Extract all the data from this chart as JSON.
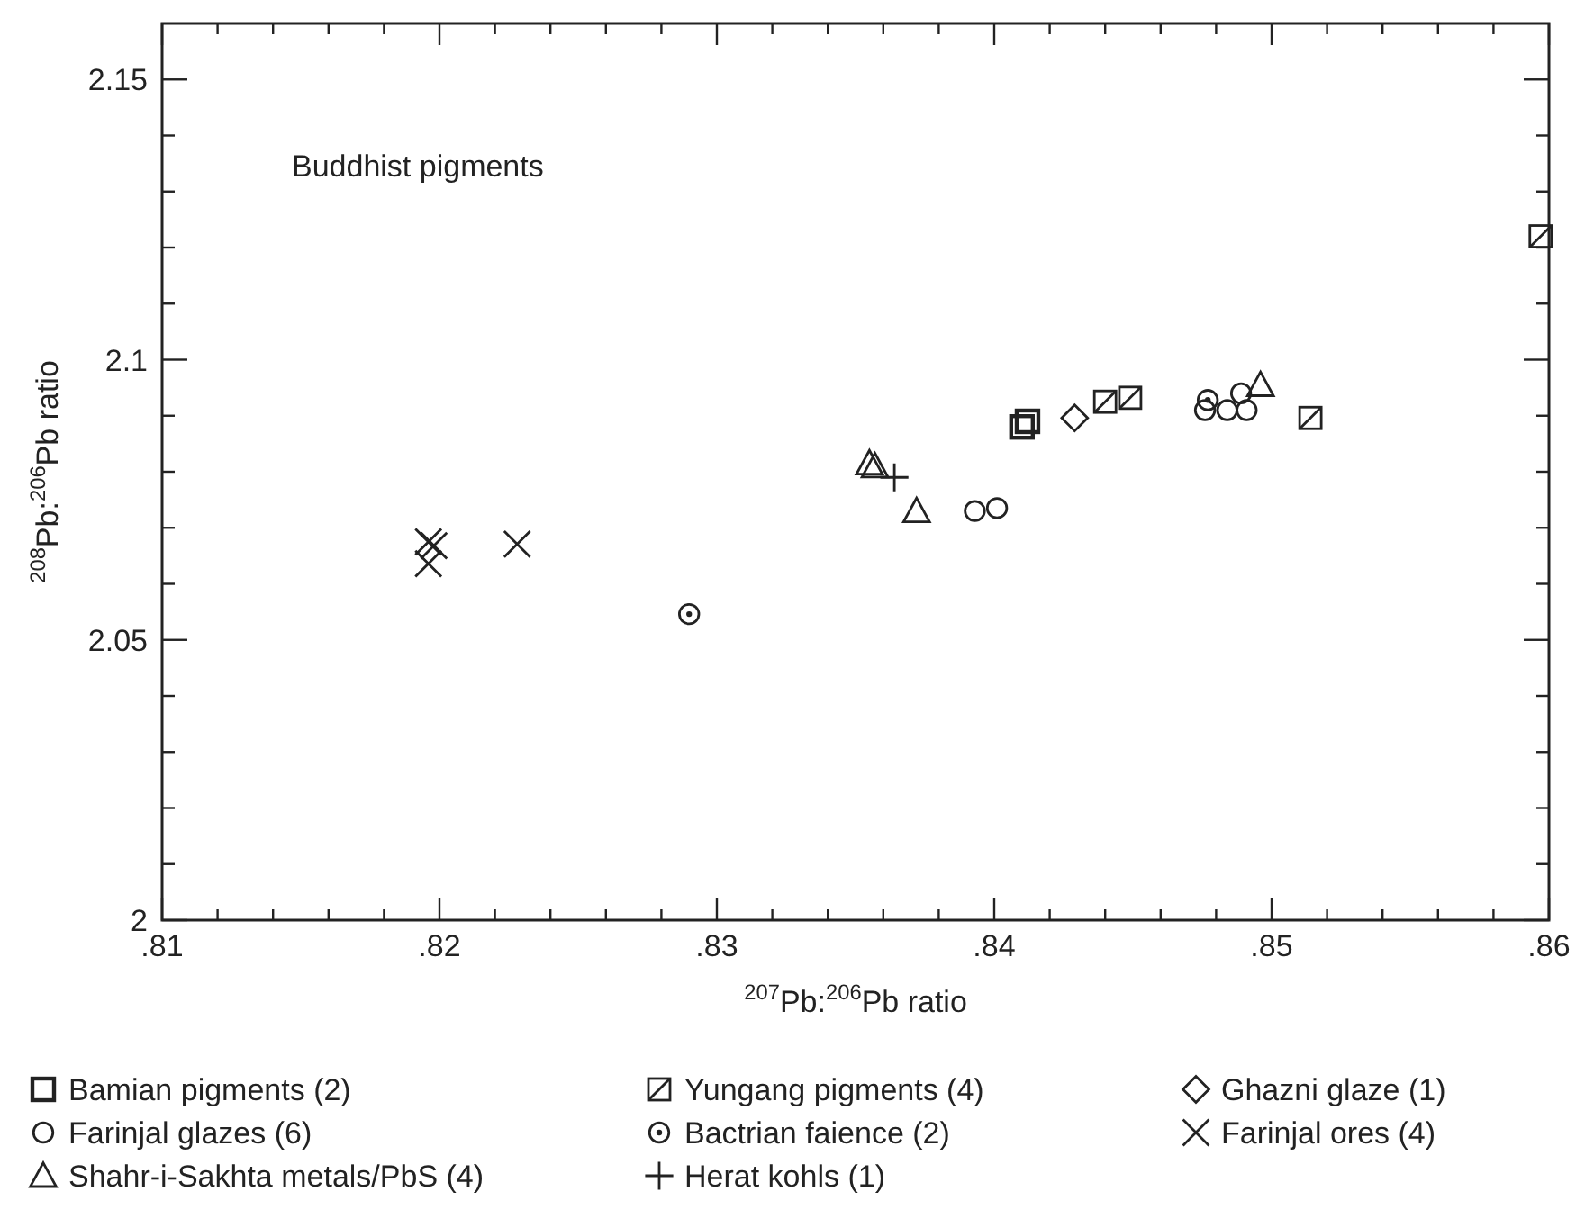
{
  "chart_data": {
    "type": "scatter",
    "xlabel": "$^{207}$Pb:$^{206}$Pb ratio",
    "ylabel": "$^{208}$Pb:$^{206}$Pb ratio",
    "annotations": [
      "Buddhist pigments"
    ],
    "xlim": [
      0.81,
      0.86
    ],
    "ylim": [
      2,
      2.16
    ],
    "xticks": [
      {
        "value": 0.81,
        "label": ".81"
      },
      {
        "value": 0.812,
        "label": null
      },
      {
        "value": 0.814,
        "label": null
      },
      {
        "value": 0.816,
        "label": null
      },
      {
        "value": 0.818,
        "label": null
      },
      {
        "value": 0.82,
        "label": ".82"
      },
      {
        "value": 0.822,
        "label": null
      },
      {
        "value": 0.824,
        "label": null
      },
      {
        "value": 0.826,
        "label": null
      },
      {
        "value": 0.828,
        "label": null
      },
      {
        "value": 0.83,
        "label": ".83"
      },
      {
        "value": 0.832,
        "label": null
      },
      {
        "value": 0.834,
        "label": null
      },
      {
        "value": 0.836,
        "label": null
      },
      {
        "value": 0.838,
        "label": null
      },
      {
        "value": 0.84,
        "label": ".84"
      },
      {
        "value": 0.842,
        "label": null
      },
      {
        "value": 0.844,
        "label": null
      },
      {
        "value": 0.846,
        "label": null
      },
      {
        "value": 0.848,
        "label": null
      },
      {
        "value": 0.85,
        "label": ".85"
      },
      {
        "value": 0.852,
        "label": null
      },
      {
        "value": 0.854,
        "label": null
      },
      {
        "value": 0.856,
        "label": null
      },
      {
        "value": 0.858,
        "label": null
      },
      {
        "value": 0.86,
        "label": ".86"
      }
    ],
    "yticks": [
      2,
      {
        "value": 2.01,
        "label": null
      },
      {
        "value": 2.02,
        "label": null
      },
      {
        "value": 2.03,
        "label": null
      },
      {
        "value": 2.04,
        "label": null
      },
      2.05,
      {
        "value": 2.06,
        "label": null
      },
      {
        "value": 2.07,
        "label": null
      },
      {
        "value": 2.08,
        "label": null
      },
      {
        "value": 2.09,
        "label": null
      },
      2.1,
      {
        "value": 2.11,
        "label": null
      },
      {
        "value": 2.12,
        "label": null
      },
      {
        "value": 2.13,
        "label": null
      },
      {
        "value": 2.14,
        "label": null
      },
      2.15
    ],
    "grid": false,
    "legend": "bottom",
    "series": [
      {
        "name": "Bamian pigments (2)",
        "marker": "square",
        "color": "#222222",
        "x": [
          0.841,
          0.8412
        ],
        "values": [
          2.088,
          2.089
        ]
      },
      {
        "name": "Farinjal glazes (6)",
        "marker": "circle",
        "color": "#222222",
        "x": [
          0.8393,
          0.8401,
          0.8476,
          0.8484,
          0.8491,
          0.8489
        ],
        "values": [
          2.073,
          2.0735,
          2.091,
          2.091,
          2.091,
          2.094
        ]
      },
      {
        "name": "Shahr-i-Sakhta metals/PbS (4)",
        "marker": "triangle",
        "color": "#222222",
        "x": [
          0.8355,
          0.8357,
          0.8372,
          0.8496
        ],
        "values": [
          2.0815,
          2.081,
          2.073,
          2.0955
        ]
      },
      {
        "name": "Yungang pigments (4)",
        "marker": "square-slash",
        "color": "#222222",
        "x": [
          0.844,
          0.8449,
          0.8514,
          0.8597
        ],
        "values": [
          2.0925,
          2.0932,
          2.0896,
          2.122
        ]
      },
      {
        "name": "Bactrian faience (2)",
        "marker": "circle-dot",
        "color": "#222222",
        "x": [
          0.829,
          0.8477
        ],
        "values": [
          2.0546,
          2.0928
        ]
      },
      {
        "name": "Herat kohls (1)",
        "marker": "plus",
        "color": "#222222",
        "x": [
          0.8364
        ],
        "values": [
          2.079
        ]
      },
      {
        "name": "Ghazni glaze (1)",
        "marker": "diamond",
        "color": "#222222",
        "x": [
          0.8429
        ],
        "values": [
          2.0896
        ]
      },
      {
        "name": "Farinjal ores (4)",
        "marker": "cross",
        "color": "#222222",
        "x": [
          0.8196,
          0.8198,
          0.8196,
          0.8228
        ],
        "values": [
          2.0675,
          2.0668,
          2.0636,
          2.0671
        ]
      }
    ]
  }
}
